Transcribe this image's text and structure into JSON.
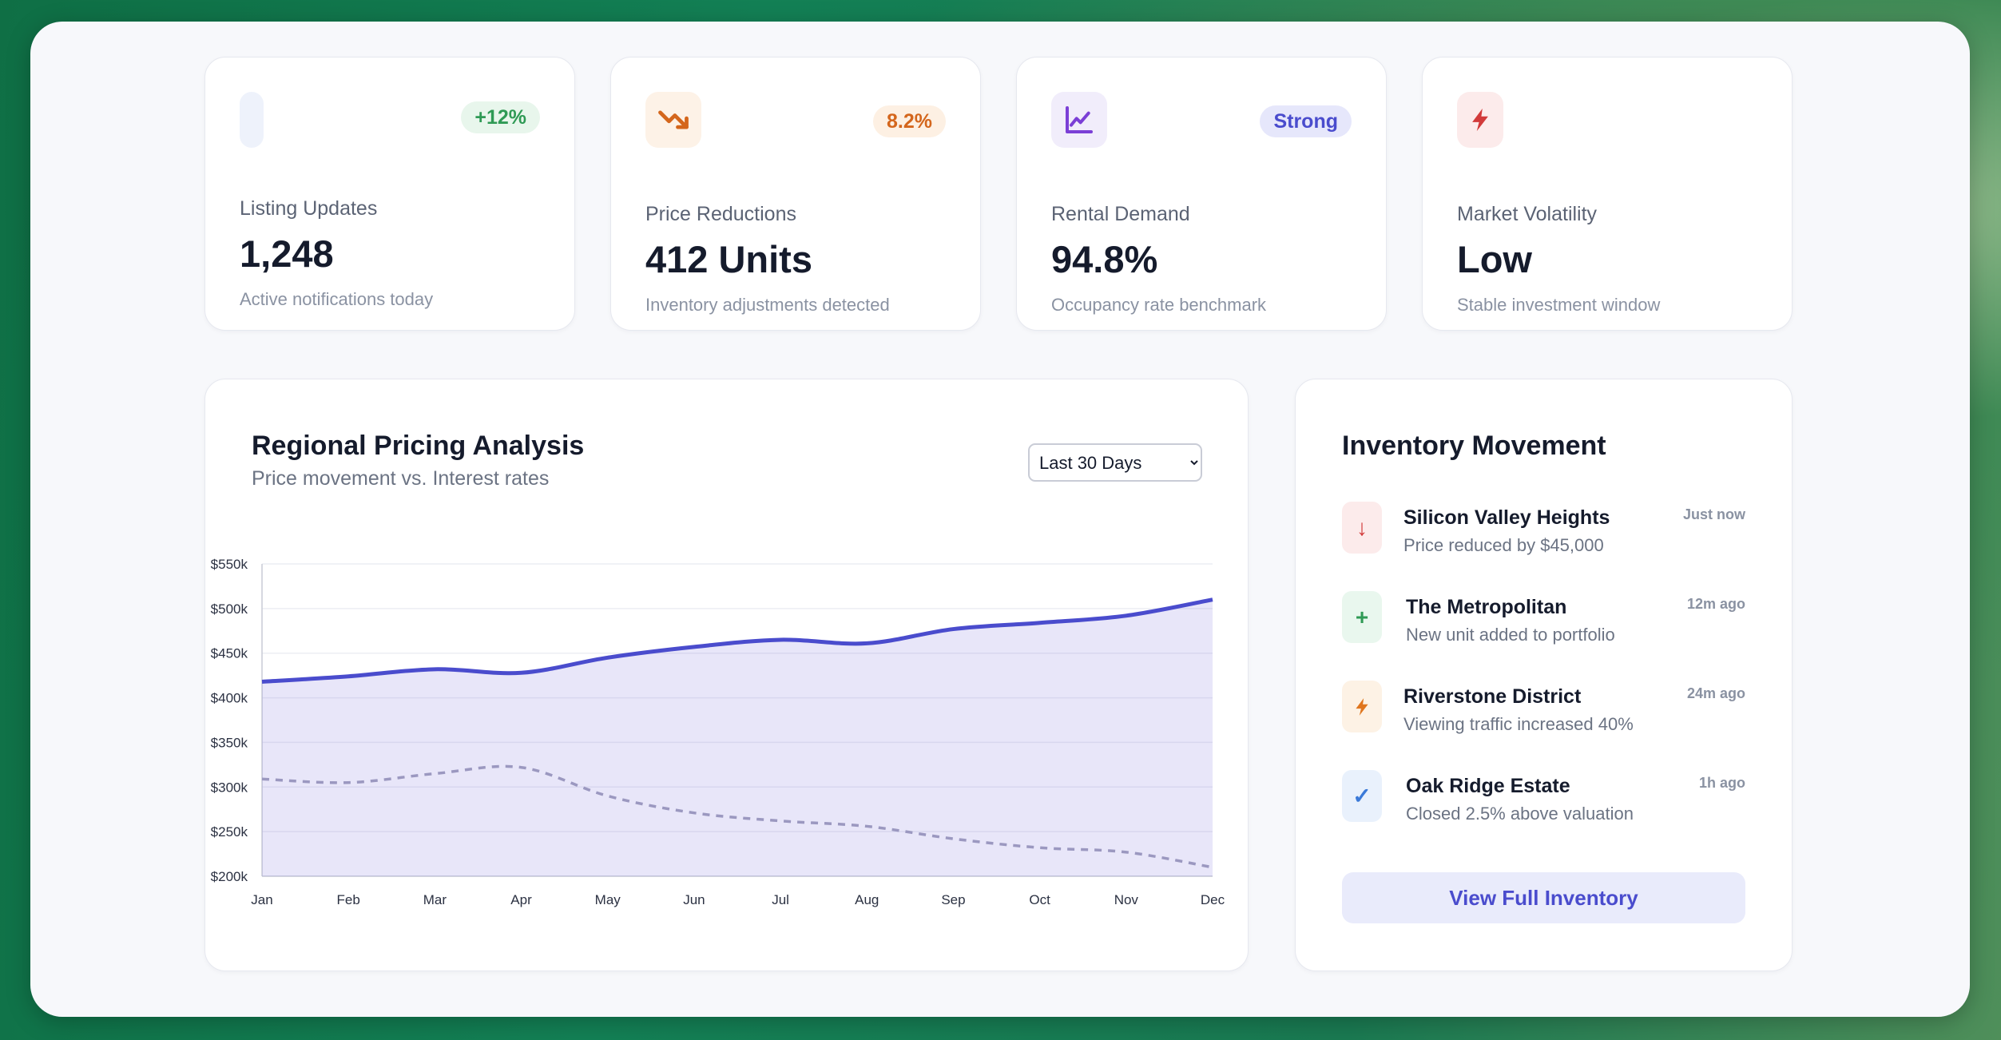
{
  "stats": [
    {
      "icon": "blank-icon",
      "badge": "+12%",
      "label": "Listing Updates",
      "value": "1,248",
      "sub": "Active notifications today",
      "accent": "#2f9a55",
      "badge_bg": "#e8f6ec",
      "icon_bg": "#eef2fb"
    },
    {
      "icon": "trending-down-icon",
      "badge": "8.2%",
      "label": "Price Reductions",
      "value": "412 Units",
      "sub": "Inventory adjustments detected",
      "accent": "#d4661c",
      "badge_bg": "#fdf0e3",
      "icon_bg": "#fdf2e7"
    },
    {
      "icon": "line-chart-icon",
      "badge": "Strong",
      "label": "Rental Demand",
      "value": "94.8%",
      "sub": "Occupancy rate benchmark",
      "accent": "#4a4ccd",
      "badge_bg": "#e6e7fb",
      "icon_bg": "#f1edfb"
    },
    {
      "icon": "lightning-icon",
      "badge": "",
      "label": "Market Volatility",
      "value": "Low",
      "sub": "Stable investment window",
      "accent": "#d23a3a",
      "badge_bg": "",
      "icon_bg": "#fcebeb"
    }
  ],
  "chart_panel": {
    "title": "Regional Pricing Analysis",
    "subtitle": "Price movement vs. Interest rates",
    "range_selected": "Last 30 Days"
  },
  "chart_data": {
    "type": "line",
    "title": "Regional Pricing Analysis",
    "subtitle": "Price movement vs. Interest rates",
    "categories": [
      "Jan",
      "Feb",
      "Mar",
      "Apr",
      "May",
      "Jun",
      "Jul",
      "Aug",
      "Sep",
      "Oct",
      "Nov",
      "Dec"
    ],
    "series": [
      {
        "style": "solid-area",
        "color": "#4a4ccd",
        "values": [
          418,
          424,
          432,
          428,
          445,
          457,
          465,
          461,
          477,
          484,
          492,
          510
        ]
      },
      {
        "style": "dashed",
        "color": "#9b98c0",
        "values": [
          309,
          305,
          315,
          322,
          290,
          271,
          262,
          256,
          242,
          232,
          227,
          210
        ]
      }
    ],
    "y_tick_labels": [
      "$550k",
      "$500k",
      "$450k",
      "$400k",
      "$350k",
      "$300k",
      "$250k",
      "$200k"
    ],
    "ylim": [
      200,
      550
    ],
    "grid": true
  },
  "inventory": {
    "title": "Inventory Movement",
    "items": [
      {
        "icon": "arrow-down-icon",
        "glyph": "↓",
        "name": "Silicon Valley Heights",
        "desc": "Price reduced by $45,000",
        "time": "Just now",
        "color": "#d23a3a",
        "bg": "#fcebeb"
      },
      {
        "icon": "plus-icon",
        "glyph": "+",
        "name": "The Metropolitan",
        "desc": "New unit added to portfolio",
        "time": "12m ago",
        "color": "#2f9a55",
        "bg": "#e9f7ee"
      },
      {
        "icon": "lightning-icon",
        "glyph": "⚡",
        "name": "Riverstone District",
        "desc": "Viewing traffic increased 40%",
        "time": "24m ago",
        "color": "#e0761e",
        "bg": "#fdf2e5"
      },
      {
        "icon": "check-icon",
        "glyph": "✓",
        "name": "Oak Ridge Estate",
        "desc": "Closed 2.5% above valuation",
        "time": "1h ago",
        "color": "#3b7ad8",
        "bg": "#e9f1fc"
      }
    ],
    "button_label": "View Full Inventory"
  }
}
